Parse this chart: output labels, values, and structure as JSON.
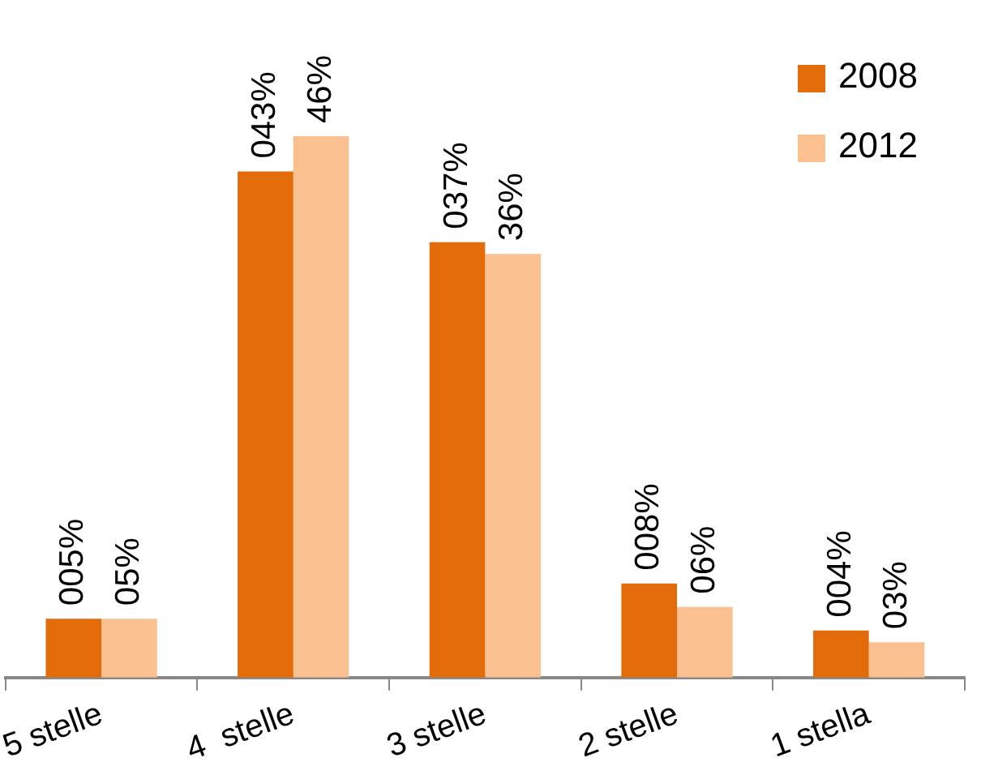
{
  "chart_data": {
    "type": "bar",
    "categories": [
      "5 stelle",
      "4  stelle",
      "3 stelle",
      "2 stelle",
      "1 stella"
    ],
    "legend": "top right",
    "series": [
      {
        "name": "2008",
        "color": "#e36c0a",
        "values": [
          5,
          43,
          37,
          8,
          4
        ],
        "value_labels": [
          "005%",
          "043%",
          "037%",
          "008%",
          "004%"
        ]
      },
      {
        "name": "2012",
        "color": "#fac090",
        "values": [
          5,
          46,
          36,
          6,
          3
        ],
        "value_labels": [
          "05%",
          "46%",
          "36%",
          "06%",
          "03%"
        ]
      }
    ]
  }
}
